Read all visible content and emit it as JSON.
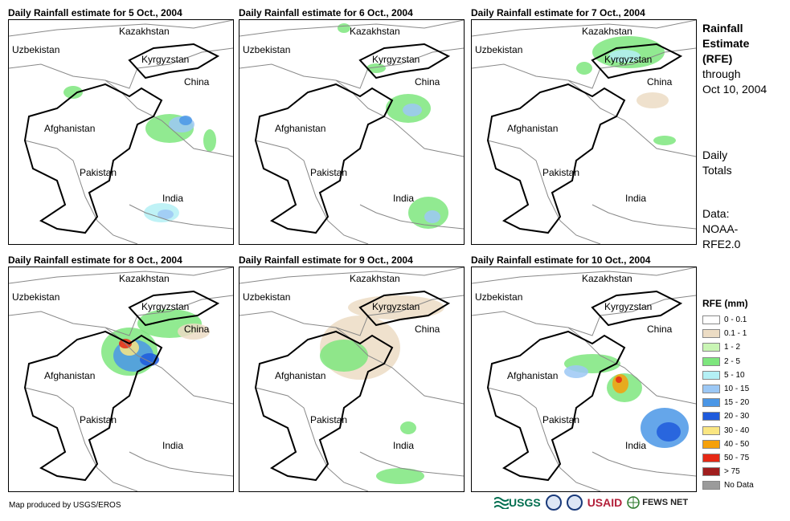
{
  "panels": [
    {
      "title": "Daily Rainfall estimate for 5 Oct., 2004"
    },
    {
      "title": "Daily Rainfall estimate for 6 Oct., 2004"
    },
    {
      "title": "Daily Rainfall estimate for 7 Oct., 2004"
    },
    {
      "title": "Daily Rainfall estimate for 8 Oct., 2004"
    },
    {
      "title": "Daily Rainfall estimate for 9 Oct., 2004"
    },
    {
      "title": "Daily Rainfall estimate for 10 Oct., 2004"
    }
  ],
  "country_labels": {
    "kazakhstan": "Kazakhstan",
    "uzbekistan": "Uzbekistan",
    "kyrgyzstan": "Kyrgyzstan",
    "china": "China",
    "afghanistan": "Afghanistan",
    "pakistan": "Pakistan",
    "india": "India"
  },
  "side": {
    "title_line1": "Rainfall",
    "title_line2": "Estimate",
    "title_line3": "(RFE)",
    "through": "through",
    "date": "Oct 10, 2004",
    "daily1": "Daily",
    "daily2": "Totals",
    "data1": "Data:",
    "data2": "NOAA-",
    "data3": "RFE2.0"
  },
  "legend": {
    "title": "RFE (mm)",
    "items": [
      {
        "label": "0 - 0.1",
        "color": "#ffffff"
      },
      {
        "label": "0.1 - 1",
        "color": "#ecdcc4"
      },
      {
        "label": "1 - 2",
        "color": "#c9f5b4"
      },
      {
        "label": "2 - 5",
        "color": "#7ee67e"
      },
      {
        "label": "5 - 10",
        "color": "#b4f0f5"
      },
      {
        "label": "10 - 15",
        "color": "#9cc8f5"
      },
      {
        "label": "15 - 20",
        "color": "#4a96e6"
      },
      {
        "label": "20 - 30",
        "color": "#1e5adc"
      },
      {
        "label": "30 - 40",
        "color": "#fae682"
      },
      {
        "label": "40 - 50",
        "color": "#f5a00a"
      },
      {
        "label": "50 - 75",
        "color": "#e62814"
      },
      {
        "label": "> 75",
        "color": "#a01e1e"
      },
      {
        "label": "No Data",
        "color": "#9b9b9b"
      }
    ]
  },
  "credit": "Map produced by USGS/EROS",
  "logos": {
    "usgs": "USGS",
    "usaid": "USAID",
    "fews": "FEWS NET"
  }
}
